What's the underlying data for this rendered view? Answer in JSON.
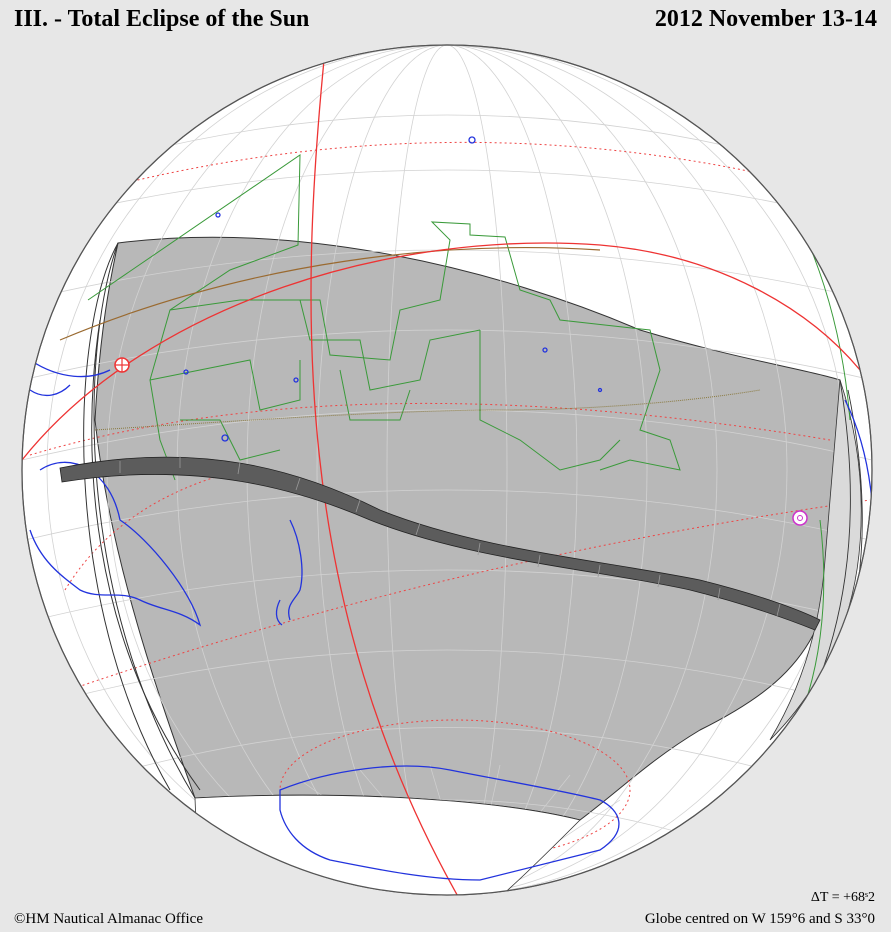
{
  "header": {
    "title": "III. - Total Eclipse of the Sun",
    "date": "2012 November 13-14"
  },
  "footer": {
    "credit": "©HM Nautical Almanac Office",
    "delta_t": "ΔT = +68ˢ2",
    "globe_center": "Globe centred on W 159°6 and S 33°0"
  },
  "colors": {
    "background": "#e7e7e7",
    "globe": "#ffffff",
    "grid": "#cfcfcf",
    "coastline": "#2233dd",
    "borders": "#2e9a2e",
    "circles": "#e22222",
    "penumbra": "#b5b5b5",
    "totality": "#5c5c5c"
  }
}
